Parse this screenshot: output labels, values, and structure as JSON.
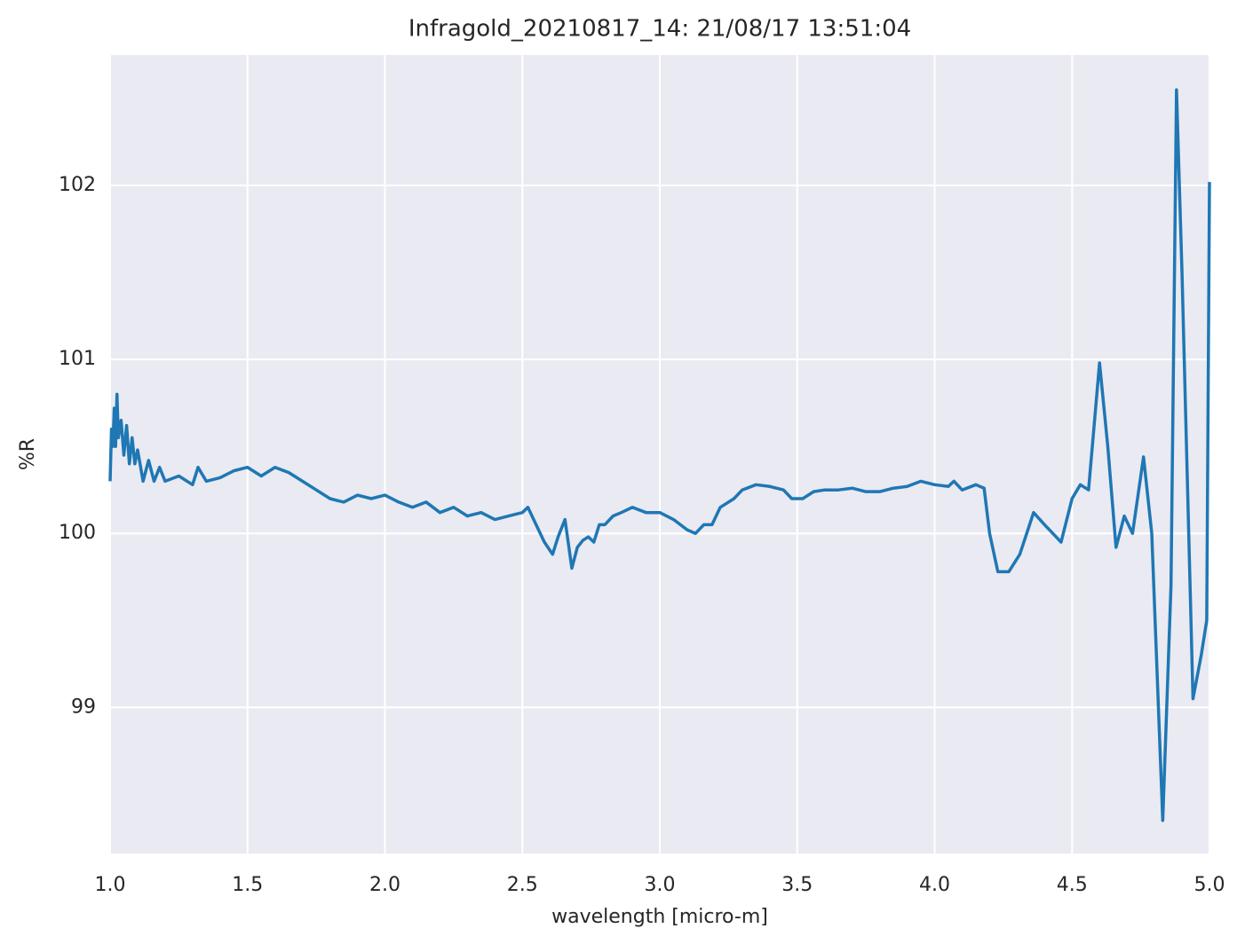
{
  "chart_data": {
    "type": "line",
    "title": "Infragold_20210817_14:  21/08/17 13:51:04",
    "x_label": "wavelength [micro-m]",
    "y_label": "%R",
    "xlim": [
      1.0,
      5.0
    ],
    "ylim": [
      98.16,
      102.75
    ],
    "xticks": [
      {
        "value": 1,
        "label": "1.0"
      },
      1.5,
      {
        "value": 2,
        "label": "2.0"
      },
      2.5,
      {
        "value": 3,
        "label": "3.0"
      },
      3.5,
      {
        "value": 4,
        "label": "4.0"
      },
      4.5,
      {
        "value": 5,
        "label": "5.0"
      }
    ],
    "yticks": [
      99,
      100,
      101,
      102
    ],
    "grid": true,
    "background": "#eaeaf2",
    "series": [
      {
        "color": "#1f77b4",
        "x": [
          1.0,
          1.005,
          1.01,
          1.015,
          1.02,
          1.025,
          1.03,
          1.04,
          1.05,
          1.06,
          1.07,
          1.08,
          1.09,
          1.1,
          1.12,
          1.14,
          1.16,
          1.18,
          1.2,
          1.25,
          1.3,
          1.32,
          1.35,
          1.4,
          1.45,
          1.5,
          1.55,
          1.6,
          1.65,
          1.7,
          1.75,
          1.8,
          1.85,
          1.9,
          1.95,
          2.0,
          2.05,
          2.1,
          2.15,
          2.2,
          2.25,
          2.3,
          2.35,
          2.4,
          2.45,
          2.5,
          2.52,
          2.55,
          2.58,
          2.61,
          2.63,
          2.655,
          2.68,
          2.7,
          2.72,
          2.74,
          2.76,
          2.78,
          2.8,
          2.83,
          2.86,
          2.9,
          2.95,
          3.0,
          3.05,
          3.1,
          3.13,
          3.16,
          3.19,
          3.22,
          3.27,
          3.3,
          3.35,
          3.4,
          3.45,
          3.48,
          3.52,
          3.56,
          3.6,
          3.65,
          3.7,
          3.75,
          3.8,
          3.85,
          3.9,
          3.95,
          4.0,
          4.05,
          4.07,
          4.1,
          4.15,
          4.18,
          4.2,
          4.23,
          4.27,
          4.31,
          4.36,
          4.4,
          4.43,
          4.46,
          4.5,
          4.53,
          4.56,
          4.6,
          4.63,
          4.66,
          4.69,
          4.72,
          4.76,
          4.79,
          4.83,
          4.86,
          4.88,
          4.9,
          4.94,
          4.97,
          4.99,
          5.0
        ],
        "values": [
          100.3,
          100.6,
          100.5,
          100.72,
          100.5,
          100.8,
          100.55,
          100.65,
          100.45,
          100.62,
          100.4,
          100.55,
          100.4,
          100.48,
          100.3,
          100.42,
          100.3,
          100.38,
          100.3,
          100.33,
          100.28,
          100.38,
          100.3,
          100.32,
          100.36,
          100.38,
          100.33,
          100.38,
          100.35,
          100.3,
          100.25,
          100.2,
          100.18,
          100.22,
          100.2,
          100.22,
          100.18,
          100.15,
          100.18,
          100.12,
          100.15,
          100.1,
          100.12,
          100.08,
          100.1,
          100.12,
          100.15,
          100.05,
          99.95,
          99.88,
          99.98,
          100.08,
          99.8,
          99.92,
          99.96,
          99.98,
          99.95,
          100.05,
          100.05,
          100.1,
          100.12,
          100.15,
          100.12,
          100.12,
          100.08,
          100.02,
          100.0,
          100.05,
          100.05,
          100.15,
          100.2,
          100.25,
          100.28,
          100.27,
          100.25,
          100.2,
          100.2,
          100.24,
          100.25,
          100.25,
          100.26,
          100.24,
          100.24,
          100.26,
          100.27,
          100.3,
          100.28,
          100.27,
          100.3,
          100.25,
          100.28,
          100.26,
          100.0,
          99.78,
          99.78,
          99.88,
          100.12,
          100.05,
          100.0,
          99.95,
          100.2,
          100.28,
          100.25,
          100.98,
          100.5,
          99.92,
          100.1,
          100.0,
          100.44,
          100.0,
          98.35,
          99.7,
          102.55,
          101.5,
          99.05,
          99.3,
          99.5,
          102.02
        ]
      }
    ]
  }
}
